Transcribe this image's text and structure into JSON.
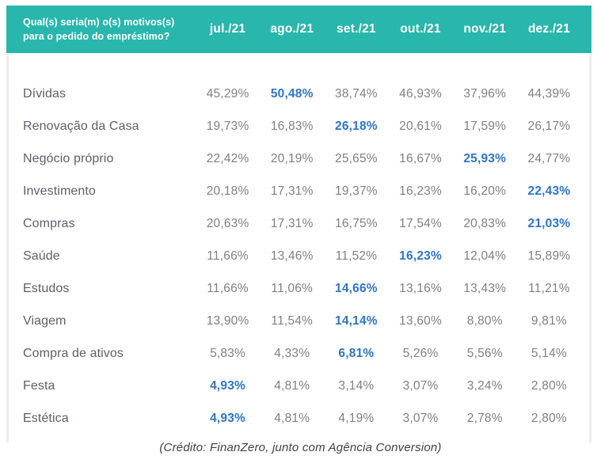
{
  "chart_data": {
    "type": "table",
    "title": "Qual(s) seria(m) o(s) motivos(s) para o pedido do empréstimo?",
    "columns": [
      "jul./21",
      "ago./21",
      "set./21",
      "out./21",
      "nov./21",
      "dez./21"
    ],
    "rows": [
      {
        "label": "Dívidas",
        "values": [
          "45,29%",
          "50,48%",
          "38,74%",
          "46,93%",
          "37,96%",
          "44,39%"
        ],
        "highlight_index": 1
      },
      {
        "label": "Renovação da Casa",
        "values": [
          "19,73%",
          "16,83%",
          "26,18%",
          "20,61%",
          "17,59%",
          "26,17%"
        ],
        "highlight_index": 2
      },
      {
        "label": "Negócio próprio",
        "values": [
          "22,42%",
          "20,19%",
          "25,65%",
          "16,67%",
          "25,93%",
          "24,77%"
        ],
        "highlight_index": 4
      },
      {
        "label": "Investimento",
        "values": [
          "20,18%",
          "17,31%",
          "19,37%",
          "16,23%",
          "16,20%",
          "22,43%"
        ],
        "highlight_index": 5
      },
      {
        "label": "Compras",
        "values": [
          "20,63%",
          "17,31%",
          "16,75%",
          "17,54%",
          "20,83%",
          "21,03%"
        ],
        "highlight_index": 5
      },
      {
        "label": "Saúde",
        "values": [
          "11,66%",
          "13,46%",
          "11,52%",
          "16,23%",
          "12,04%",
          "15,89%"
        ],
        "highlight_index": 3
      },
      {
        "label": "Estudos",
        "values": [
          "11,66%",
          "11,06%",
          "14,66%",
          "13,16%",
          "13,43%",
          "11,21%"
        ],
        "highlight_index": 2
      },
      {
        "label": "Viagem",
        "values": [
          "13,90%",
          "11,54%",
          "14,14%",
          "13,60%",
          "8,80%",
          "9,81%"
        ],
        "highlight_index": 2
      },
      {
        "label": "Compra de ativos",
        "values": [
          "5,83%",
          "4,33%",
          "6,81%",
          "5,26%",
          "5,56%",
          "5,14%"
        ],
        "highlight_index": 2
      },
      {
        "label": "Festa",
        "values": [
          "4,93%",
          "4,81%",
          "3,14%",
          "3,07%",
          "3,24%",
          "2,80%"
        ],
        "highlight_index": 0
      },
      {
        "label": "Estética",
        "values": [
          "4,93%",
          "4,81%",
          "4,19%",
          "3,07%",
          "2,78%",
          "2,80%"
        ],
        "highlight_index": 0
      }
    ]
  },
  "caption": "(Crédito: FinanZero, junto com Agência Conversion)",
  "colors": {
    "header_bg": "#29b6ac",
    "header_text": "#ffffff",
    "highlight": "#2e75c5",
    "value_text": "#7d8185",
    "label_text": "#5c6166"
  }
}
